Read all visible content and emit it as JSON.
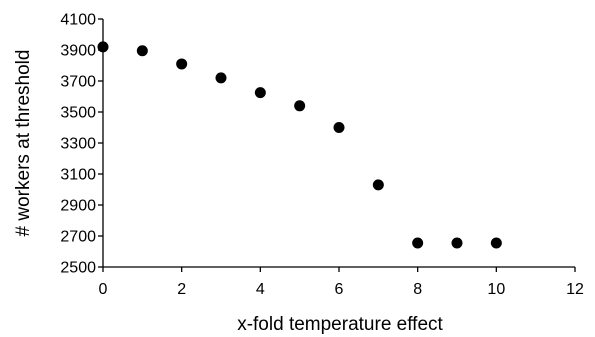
{
  "chart_data": {
    "type": "scatter",
    "title": "",
    "xlabel": "x-fold temperature effect",
    "ylabel": "# workers at threshold",
    "xlim": [
      0,
      12
    ],
    "ylim": [
      2500,
      4100
    ],
    "xticks": [
      0,
      2,
      4,
      6,
      8,
      10,
      12
    ],
    "yticks": [
      2500,
      2700,
      2900,
      3100,
      3300,
      3500,
      3700,
      3900,
      4100
    ],
    "grid": false,
    "legend": "none",
    "marker_color": "#000000",
    "series": [
      {
        "x": [
          0,
          1,
          2,
          3,
          4,
          5,
          6,
          7,
          8,
          9,
          10
        ],
        "y": [
          3920,
          3895,
          3810,
          3720,
          3625,
          3540,
          3400,
          3030,
          2655,
          2655,
          2655
        ]
      }
    ]
  }
}
